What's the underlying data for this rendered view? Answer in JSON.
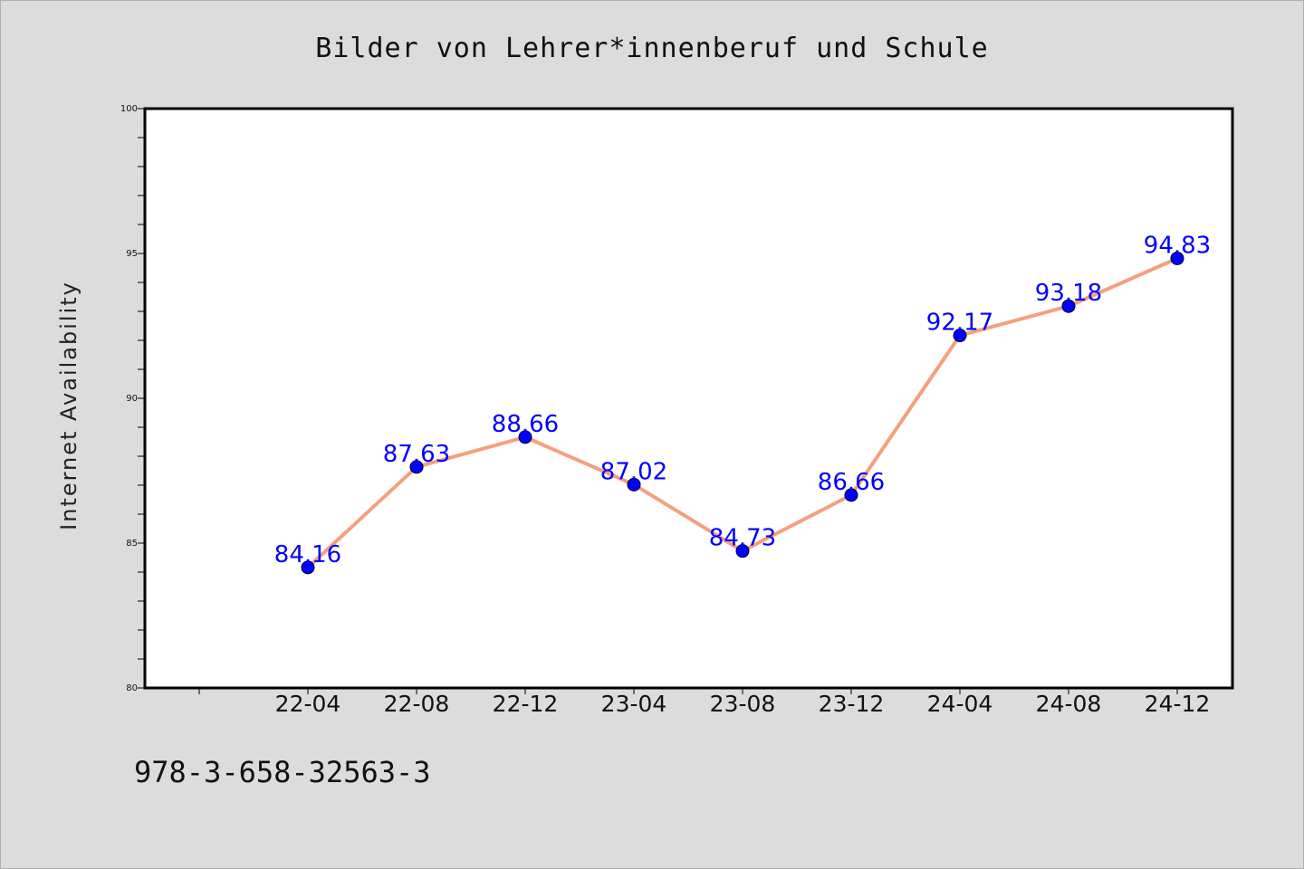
{
  "chart_data": {
    "type": "line",
    "title": "Bilder von Lehrer*innenberuf und Schule",
    "xlabel": "",
    "ylabel": "Internet Availability",
    "categories": [
      "22-04",
      "22-08",
      "22-12",
      "23-04",
      "23-08",
      "23-12",
      "24-04",
      "24-08",
      "24-12"
    ],
    "series": [
      {
        "values": [
          84.16,
          87.63,
          88.66,
          87.02,
          84.73,
          86.66,
          92.17,
          93.18,
          94.83
        ],
        "labels": [
          "84.16",
          "87.63",
          "88.66",
          "87.02",
          "84.73",
          "86.66",
          "92.17",
          "93.18",
          "94.83"
        ]
      }
    ],
    "ylim": [
      80,
      100
    ],
    "yticks": [
      "80",
      "85",
      "90",
      "95",
      "100"
    ],
    "grid": false,
    "legend": "none"
  },
  "colors": {
    "line": "#f4a07e",
    "marker": "#0000ff",
    "data_label": "#0000ff",
    "background": "#dcdcdc",
    "plot_background": "#ffffff"
  },
  "footer": {
    "text": "978-3-658-32563-3"
  }
}
